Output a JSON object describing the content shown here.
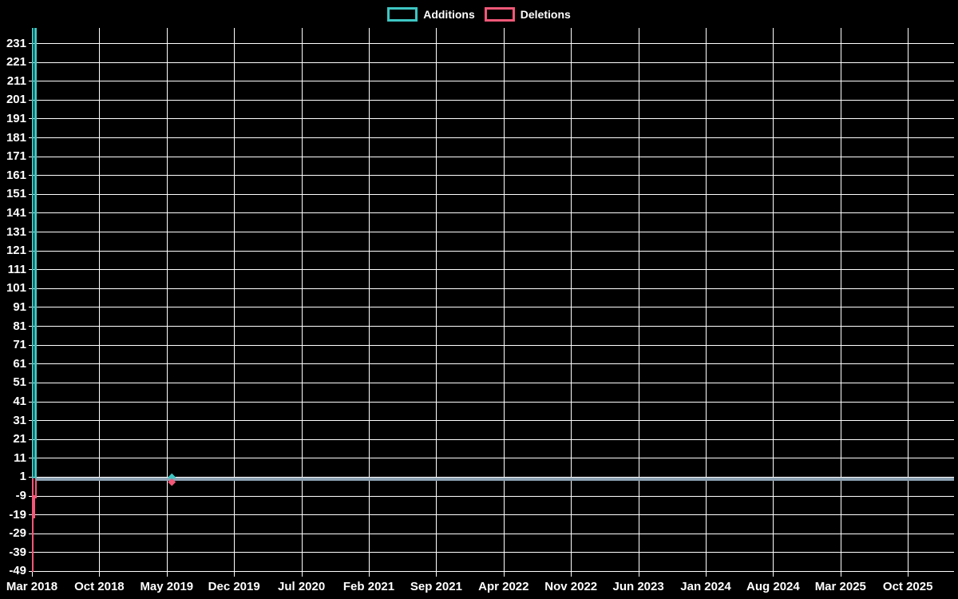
{
  "app": {
    "description": "Code frequency line chart (additions vs deletions over time) on black background"
  },
  "legend": {
    "items": [
      {
        "label": "Additions",
        "color": "#3ec6c3"
      },
      {
        "label": "Deletions",
        "color": "#f25878"
      }
    ]
  },
  "colors": {
    "background": "#000000",
    "grid": "#ffffff",
    "text": "#ffffff",
    "additions": "#3ec6c3",
    "deletions": "#f25878",
    "flat_overlap_line": "#8ca2b2"
  },
  "chart_data": {
    "type": "line",
    "title": "",
    "xlabel": "",
    "ylabel": "",
    "legend_position": "top-center",
    "grid": true,
    "ylim": [
      -49,
      239
    ],
    "y_tick_step": 10,
    "y_ticks": [
      "231",
      "221",
      "211",
      "201",
      "191",
      "181",
      "171",
      "161",
      "151",
      "141",
      "131",
      "121",
      "111",
      "101",
      "91",
      "81",
      "71",
      "61",
      "51",
      "41",
      "31",
      "21",
      "11",
      "1",
      "-9",
      "-19",
      "-29",
      "-39",
      "-49"
    ],
    "x_ticks": [
      "Mar 2018",
      "Oct 2018",
      "May 2019",
      "Dec 2019",
      "Jul 2020",
      "Feb 2021",
      "Sep 2021",
      "Apr 2022",
      "Nov 2022",
      "Jun 2023",
      "Jan 2024",
      "Aug 2024",
      "Mar 2025",
      "Oct 2025"
    ],
    "series": [
      {
        "name": "Additions",
        "color": "#3ec6c3",
        "points": [
          {
            "x": "Mar 2018 (week 1)",
            "y": 240
          },
          {
            "x": "Mar 2018 (week 2)",
            "y": 1
          },
          {
            "x": "May 2019",
            "y": 1
          },
          {
            "x": "Dec 2025 (right edge)",
            "y": 1
          }
        ]
      },
      {
        "name": "Deletions",
        "color": "#f25878",
        "points": [
          {
            "x": "Mar 2018 (week 1)",
            "y": -49
          },
          {
            "x": "Mar 2018 (week 2)",
            "y": 0
          },
          {
            "x": "May 2019",
            "y": 0
          },
          {
            "x": "Dec 2025 (right edge)",
            "y": 0
          }
        ]
      }
    ],
    "visible_markers": [
      {
        "x": "May 2019",
        "series": "Additions",
        "y": 1
      },
      {
        "x": "May 2019",
        "series": "Deletions",
        "y": 0
      }
    ],
    "annotations": "Additions spike to ~240 (clipped at plot top above the 231 gridline) and deletions spike to -49 in Mar 2018; both series stay flat near 1 / 0 for the rest of the range, overlapping as a single gray-blue line."
  }
}
